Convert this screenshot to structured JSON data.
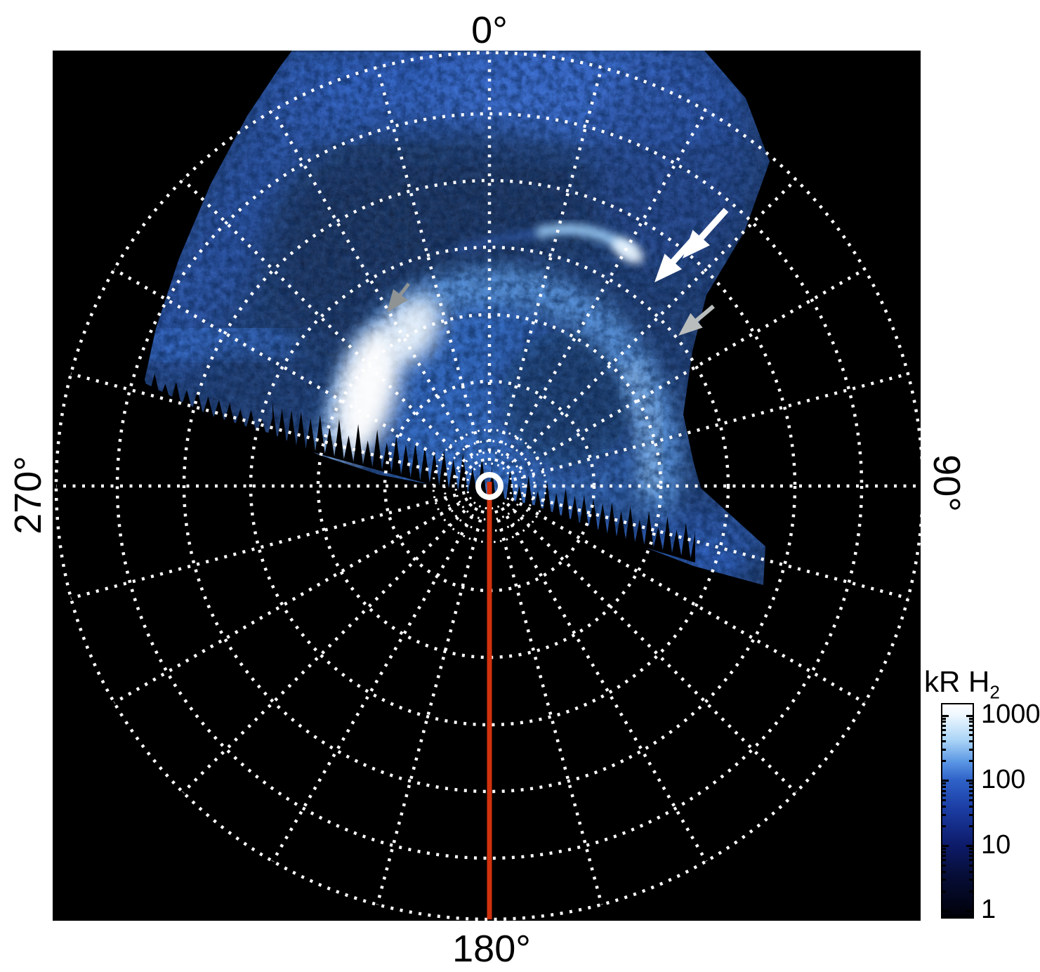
{
  "figure": {
    "description": "Polar projection map of H2 auroral emission with dotted lat-lon grid",
    "angle_labels": {
      "top": "0°",
      "right": "90°",
      "bottom": "180°",
      "left": "270°"
    }
  },
  "colorbar": {
    "title_main": "kR H",
    "title_sub": "2",
    "tick_labels": [
      "1000",
      "100",
      "10",
      "1"
    ]
  },
  "colors": {
    "plot_background": "#000000",
    "grid_dots": "#ffffff",
    "reference_line": "#d0320e",
    "pole_ring": "#ffffff",
    "arrow_white": "#ffffff",
    "arrow_gray_light": "#b9bdbd",
    "arrow_gray_dark": "#8f9394"
  },
  "chart_data": {
    "type": "heatmap",
    "projection": "polar-azimuthal",
    "quantity": "H2 auroral emission brightness",
    "units": "kR",
    "color_scale": {
      "label": "kR H2",
      "type": "log",
      "min": 1,
      "max": 1000,
      "ticks": [
        1000,
        100,
        10,
        1
      ],
      "colormap": "black -> dark blue -> blue -> light blue -> white"
    },
    "azimuth_tick_labels_deg": [
      0,
      90,
      180,
      270
    ],
    "grid": {
      "style": "dotted white",
      "meridian_spacing_deg": 15,
      "major_ring_count": 6,
      "inner_fine_rings": 4,
      "outer_boundary_ring": true
    },
    "reference_line": {
      "azimuth_deg": 180,
      "from": "pole",
      "to": "outer ring",
      "color": "#d0320e"
    },
    "data_coverage": {
      "observed_sector_azimuth_deg": [
        265,
        107
      ],
      "no_data_region": "lower (night-side) sector is black",
      "lower_boundary": "jagged sawtooth terminator edge through pole"
    },
    "features": [
      {
        "name": "main auroral oval",
        "azimuth_deg": [
          300,
          80
        ],
        "relative_radius": [
          0.3,
          0.42
        ],
        "peak_kR": 1000,
        "note": "brightest saturated white segment at azimuth 315-350"
      },
      {
        "name": "secondary thin arc",
        "azimuth_deg": [
          5,
          30
        ],
        "relative_radius": 0.62,
        "approx_kR": 300,
        "note": "targeted by two white arrows; bright tip at its eastern end"
      },
      {
        "name": "outer diffuse emission band",
        "azimuth_deg": [
          315,
          40
        ],
        "relative_radius": [
          0.85,
          1.0
        ],
        "approx_kR": 30
      },
      {
        "name": "dark lane between bands",
        "azimuth_deg": [
          330,
          40
        ],
        "relative_radius": [
          0.55,
          0.75
        ],
        "approx_kR": 3
      },
      {
        "name": "dark region inside oval",
        "azimuth_deg": [
          50,
          130
        ],
        "relative_radius": [
          0.1,
          0.25
        ],
        "approx_kR": 5
      },
      {
        "name": "dawn-side streaked patch",
        "azimuth_deg": [
          95,
          110
        ],
        "relative_radius": [
          0.4,
          0.65
        ],
        "approx_kR": 50
      }
    ],
    "annotations": [
      {
        "type": "arrow",
        "color": "white",
        "count": 2,
        "points_to": "secondary thin arc",
        "direction": "down-left"
      },
      {
        "type": "arrow",
        "color": "light gray",
        "points_to": "outer edge of dawn-side arc",
        "direction": "down-left"
      },
      {
        "type": "arrow",
        "color": "gray",
        "points_to": "outer edge of main oval (pre-noon)",
        "direction": "down-left"
      }
    ]
  }
}
